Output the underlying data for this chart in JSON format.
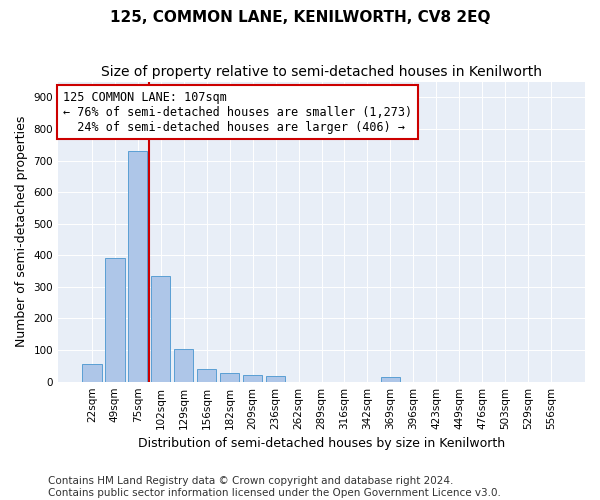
{
  "title": "125, COMMON LANE, KENILWORTH, CV8 2EQ",
  "subtitle": "Size of property relative to semi-detached houses in Kenilworth",
  "xlabel": "Distribution of semi-detached houses by size in Kenilworth",
  "ylabel": "Number of semi-detached properties",
  "categories": [
    "22sqm",
    "49sqm",
    "75sqm",
    "102sqm",
    "129sqm",
    "156sqm",
    "182sqm",
    "209sqm",
    "236sqm",
    "262sqm",
    "289sqm",
    "316sqm",
    "342sqm",
    "369sqm",
    "396sqm",
    "423sqm",
    "449sqm",
    "476sqm",
    "503sqm",
    "529sqm",
    "556sqm"
  ],
  "values": [
    55,
    390,
    730,
    335,
    105,
    40,
    28,
    20,
    18,
    0,
    0,
    0,
    0,
    15,
    0,
    0,
    0,
    0,
    0,
    0,
    0
  ],
  "bar_color": "#aec6e8",
  "bar_edge_color": "#5a9fd4",
  "vline_position": 2.5,
  "annotation_text": "125 COMMON LANE: 107sqm\n← 76% of semi-detached houses are smaller (1,273)\n  24% of semi-detached houses are larger (406) →",
  "annotation_box_color": "#ffffff",
  "annotation_box_edge": "#cc0000",
  "vline_color": "#cc0000",
  "ylim": [
    0,
    950
  ],
  "yticks": [
    0,
    100,
    200,
    300,
    400,
    500,
    600,
    700,
    800,
    900
  ],
  "background_color": "#e8eef7",
  "footer_text": "Contains HM Land Registry data © Crown copyright and database right 2024.\nContains public sector information licensed under the Open Government Licence v3.0.",
  "title_fontsize": 11,
  "subtitle_fontsize": 10,
  "xlabel_fontsize": 9,
  "ylabel_fontsize": 9,
  "tick_fontsize": 7.5,
  "footer_fontsize": 7.5
}
